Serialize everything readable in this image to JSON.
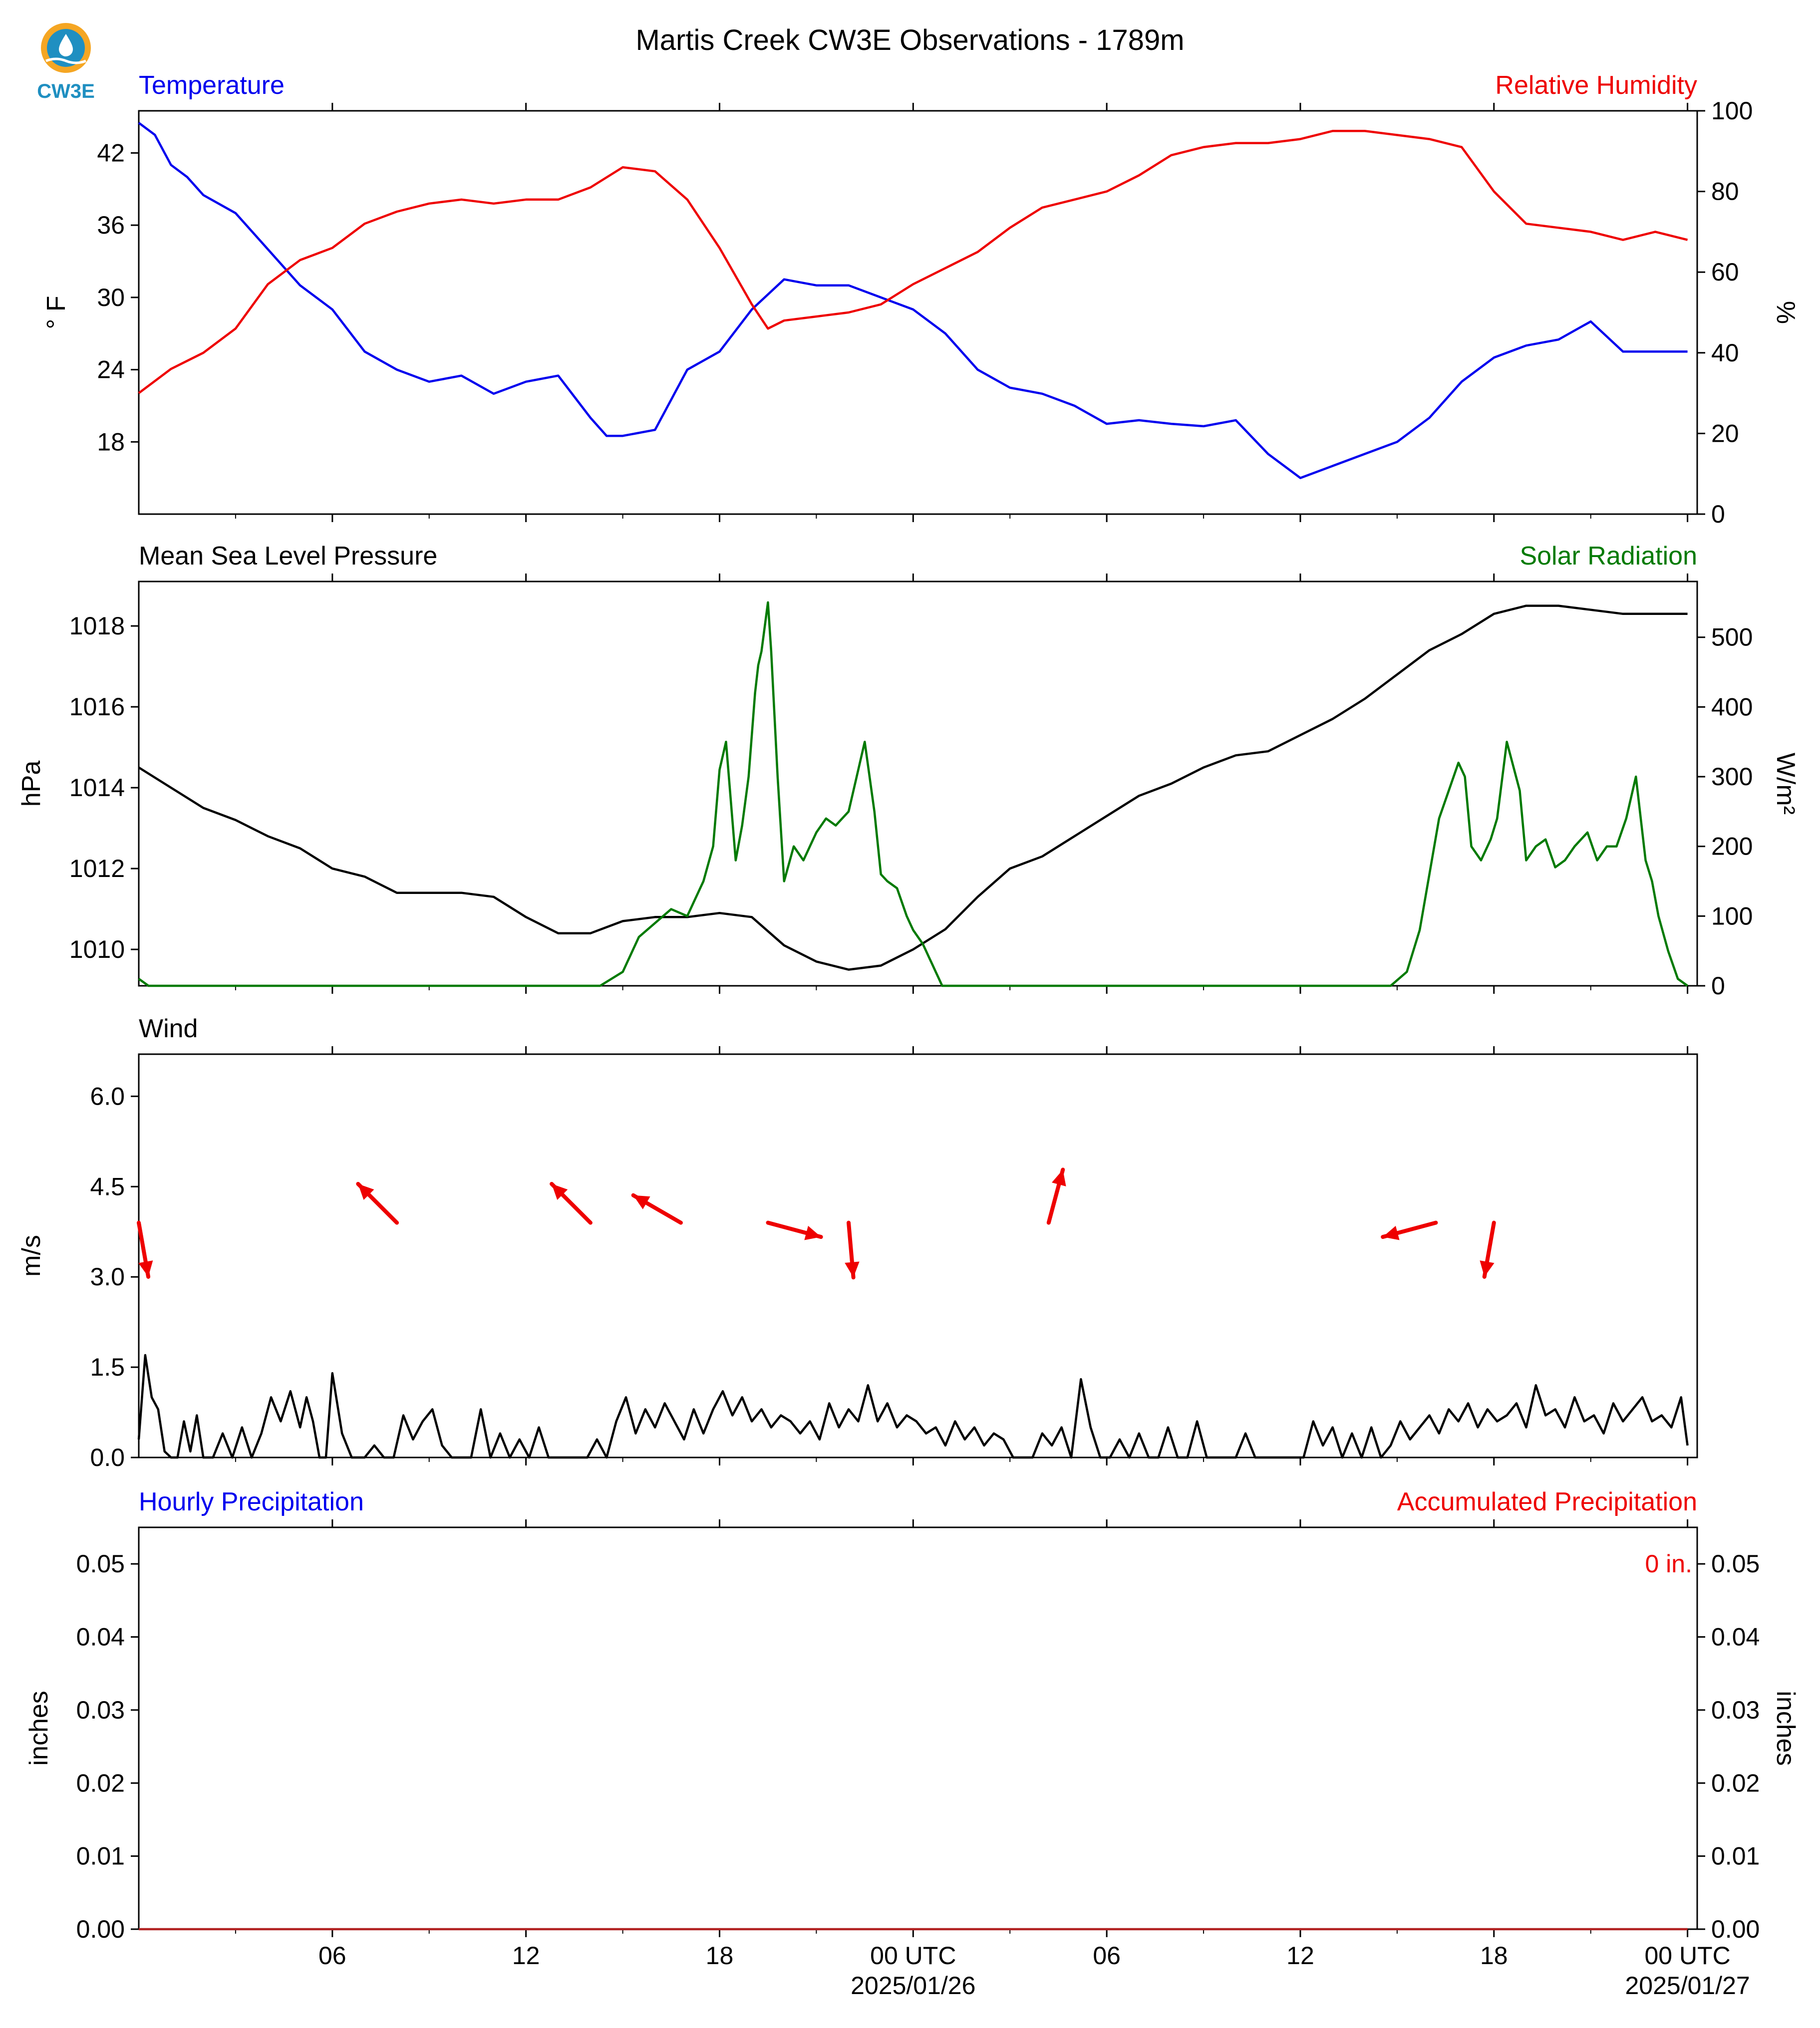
{
  "logo": {
    "text": "CW3E",
    "color": "#1f8fc1",
    "accent": "#f5a623"
  },
  "title": "Martis Creek CW3E Observations - 1789m",
  "colors": {
    "temperature": "#0000ee",
    "humidity": "#ee0000",
    "pressure": "#000000",
    "solar": "#007a00",
    "wind": "#000000",
    "arrows": "#ee0000",
    "accum": "#b22222"
  },
  "xaxis": {
    "ticks": [
      {
        "h": 6,
        "label": "06"
      },
      {
        "h": 12,
        "label": "12"
      },
      {
        "h": 18,
        "label": "18"
      },
      {
        "h": 24,
        "label": "00 UTC",
        "date": "2025/01/26"
      },
      {
        "h": 30,
        "label": "06"
      },
      {
        "h": 36,
        "label": "12"
      },
      {
        "h": 42,
        "label": "18"
      },
      {
        "h": 48,
        "label": "00 UTC",
        "date": "2025/01/27"
      }
    ]
  },
  "chart_data": [
    {
      "type": "line",
      "left_title": "Temperature",
      "right_title": "Relative Humidity",
      "ylabel_left": "° F",
      "ylabel_right": "%",
      "ylim_left": [
        12,
        45.5
      ],
      "ylim_right": [
        0,
        100
      ],
      "yticks_left": [
        18,
        24,
        30,
        36,
        42
      ],
      "yticks_right": [
        0,
        20,
        40,
        60,
        80,
        100
      ],
      "series": [
        {
          "axis": "left",
          "hours": [
            0,
            0.5,
            1,
            1.5,
            2,
            3,
            4,
            5,
            6,
            7,
            8,
            9,
            10,
            11,
            12,
            13,
            14,
            14.5,
            15,
            16,
            17,
            18,
            19,
            20,
            21,
            22,
            23,
            24,
            25,
            26,
            27,
            28,
            29,
            30,
            31,
            32,
            33,
            34,
            35,
            36,
            37,
            38,
            39,
            40,
            41,
            42,
            43,
            44,
            45,
            46,
            47,
            47.5,
            48
          ],
          "values": [
            44.5,
            43.5,
            41,
            40,
            38.5,
            37,
            34,
            31,
            29,
            25.5,
            24,
            23,
            23.5,
            22,
            23,
            23.5,
            20,
            18.5,
            18.5,
            19,
            24,
            25.5,
            29,
            31.5,
            31,
            31,
            30,
            29,
            27,
            24,
            22.5,
            22,
            21,
            19.5,
            19.8,
            19.5,
            19.3,
            19.8,
            17,
            15,
            16,
            17,
            18,
            20,
            23,
            25,
            26,
            26.5,
            28,
            25.5,
            25.5,
            25.5,
            25.5
          ]
        },
        {
          "axis": "right",
          "hours": [
            0,
            1,
            2,
            3,
            4,
            5,
            6,
            7,
            8,
            9,
            10,
            11,
            12,
            13,
            14,
            15,
            16,
            17,
            18,
            19,
            19.5,
            20,
            21,
            22,
            23,
            24,
            25,
            26,
            27,
            28,
            29,
            30,
            31,
            32,
            33,
            34,
            35,
            36,
            37,
            38,
            39,
            40,
            41,
            42,
            43,
            44,
            45,
            46,
            47,
            48
          ],
          "values": [
            30,
            36,
            40,
            46,
            57,
            63,
            66,
            72,
            75,
            77,
            78,
            77,
            78,
            78,
            81,
            86,
            85,
            78,
            66,
            52,
            46,
            48,
            49,
            50,
            52,
            57,
            61,
            65,
            71,
            76,
            78,
            80,
            84,
            89,
            91,
            92,
            92,
            93,
            95,
            95,
            94,
            93,
            91,
            80,
            72,
            71,
            70,
            68,
            70,
            68
          ]
        }
      ]
    },
    {
      "type": "line",
      "left_title": "Mean Sea Level Pressure",
      "right_title": "Solar Radiation",
      "ylabel_left": "hPa",
      "ylabel_right": "W/m²",
      "ylim_left": [
        1009.1,
        1019.1
      ],
      "ylim_right": [
        0,
        580
      ],
      "yticks_left": [
        1010,
        1012,
        1014,
        1016,
        1018
      ],
      "yticks_right": [
        0,
        100,
        200,
        300,
        400,
        500
      ],
      "series": [
        {
          "axis": "left",
          "hours": [
            0,
            1,
            2,
            3,
            4,
            5,
            6,
            7,
            8,
            9,
            10,
            11,
            12,
            13,
            14,
            15,
            16,
            17,
            18,
            19,
            20,
            21,
            22,
            23,
            24,
            25,
            26,
            27,
            28,
            29,
            30,
            31,
            32,
            33,
            34,
            35,
            36,
            37,
            38,
            39,
            40,
            41,
            42,
            43,
            44,
            45,
            46,
            47,
            48
          ],
          "values": [
            1014.5,
            1014,
            1013.5,
            1013.2,
            1012.8,
            1012.5,
            1012,
            1011.8,
            1011.4,
            1011.4,
            1011.4,
            1011.3,
            1010.8,
            1010.4,
            1010.4,
            1010.7,
            1010.8,
            1010.8,
            1010.9,
            1010.8,
            1010.1,
            1009.7,
            1009.5,
            1009.6,
            1010,
            1010.5,
            1011.3,
            1012,
            1012.3,
            1012.8,
            1013.3,
            1013.8,
            1014.1,
            1014.5,
            1014.8,
            1014.9,
            1015.3,
            1015.7,
            1016.2,
            1016.8,
            1017.4,
            1017.8,
            1018.3,
            1018.5,
            1018.5,
            1018.4,
            1018.3,
            1018.3,
            1018.3
          ]
        },
        {
          "axis": "right",
          "hours": [
            0,
            0.3,
            14.3,
            15,
            15.5,
            16,
            16.5,
            17,
            17.3,
            17.5,
            17.8,
            18,
            18.2,
            18.5,
            18.7,
            18.9,
            19.1,
            19.2,
            19.3,
            19.5,
            19.6,
            19.8,
            20,
            20.3,
            20.6,
            21,
            21.3,
            21.6,
            22,
            22.3,
            22.5,
            22.8,
            23,
            23.2,
            23.5,
            23.8,
            24,
            24.3,
            24.6,
            24.9,
            38.8,
            39.3,
            39.7,
            40,
            40.3,
            40.6,
            40.9,
            41.1,
            41.3,
            41.6,
            41.9,
            42.1,
            42.4,
            42.8,
            43,
            43.3,
            43.6,
            43.9,
            44.2,
            44.5,
            44.9,
            45.2,
            45.5,
            45.8,
            46.1,
            46.4,
            46.7,
            46.9,
            47.1,
            47.4,
            47.7,
            48
          ],
          "values": [
            10,
            0,
            0,
            20,
            70,
            90,
            110,
            100,
            130,
            150,
            200,
            310,
            350,
            180,
            230,
            300,
            420,
            460,
            480,
            550,
            480,
            300,
            150,
            200,
            180,
            220,
            240,
            230,
            250,
            310,
            350,
            250,
            160,
            150,
            140,
            100,
            80,
            60,
            30,
            0,
            0,
            20,
            80,
            160,
            240,
            280,
            320,
            300,
            200,
            180,
            210,
            240,
            350,
            280,
            180,
            200,
            210,
            170,
            180,
            200,
            220,
            180,
            200,
            200,
            240,
            300,
            180,
            150,
            100,
            50,
            10,
            0
          ]
        }
      ]
    },
    {
      "type": "line",
      "left_title": "Wind",
      "ylabel_left": "m/s",
      "ylim_left": [
        0,
        6.7
      ],
      "yticks_left": [
        0.0,
        1.5,
        3.0,
        4.5,
        6.0
      ],
      "tick_labels_left": [
        "0.0",
        "1.5",
        "3.0",
        "4.5",
        "6.0"
      ],
      "series": [
        {
          "axis": "left",
          "hours": [
            0,
            0.2,
            0.4,
            0.6,
            0.8,
            1,
            1.2,
            1.4,
            1.6,
            1.8,
            2,
            2.3,
            2.6,
            2.9,
            3.2,
            3.5,
            3.8,
            4.1,
            4.4,
            4.7,
            5,
            5.2,
            5.4,
            5.6,
            5.8,
            6,
            6.3,
            6.6,
            7,
            7.3,
            7.6,
            7.9,
            8.2,
            8.5,
            8.8,
            9.1,
            9.4,
            9.7,
            10,
            10.3,
            10.6,
            10.9,
            11.2,
            11.5,
            11.8,
            12.1,
            12.4,
            12.7,
            13,
            13.3,
            13.6,
            13.9,
            14.2,
            14.5,
            14.8,
            15.1,
            15.4,
            15.7,
            16,
            16.3,
            16.6,
            16.9,
            17.2,
            17.5,
            17.8,
            18.1,
            18.4,
            18.7,
            19,
            19.3,
            19.6,
            19.9,
            20.2,
            20.5,
            20.8,
            21.1,
            21.4,
            21.7,
            22,
            22.3,
            22.6,
            22.9,
            23.2,
            23.5,
            23.8,
            24.1,
            24.4,
            24.7,
            25,
            25.3,
            25.6,
            25.9,
            26.2,
            26.5,
            26.8,
            27.1,
            27.4,
            27.7,
            28,
            28.3,
            28.6,
            28.9,
            29.2,
            29.5,
            29.8,
            30.1,
            30.4,
            30.7,
            31,
            31.3,
            31.6,
            31.9,
            32.2,
            32.5,
            32.8,
            33.1,
            33.4,
            33.7,
            34,
            34.3,
            34.6,
            34.9,
            35.2,
            35.5,
            35.8,
            36.1,
            36.4,
            36.7,
            37,
            37.3,
            37.6,
            37.9,
            38.2,
            38.5,
            38.8,
            39.1,
            39.4,
            39.7,
            40,
            40.3,
            40.6,
            40.9,
            41.2,
            41.5,
            41.8,
            42.1,
            42.4,
            42.7,
            43,
            43.3,
            43.6,
            43.9,
            44.2,
            44.5,
            44.8,
            45.1,
            45.4,
            45.7,
            46,
            46.3,
            46.6,
            46.9,
            47.2,
            47.5,
            47.8,
            48
          ],
          "values": [
            0.3,
            1.7,
            1.0,
            0.8,
            0.1,
            0,
            0,
            0.6,
            0.1,
            0.7,
            0,
            0,
            0.4,
            0,
            0.5,
            0,
            0.4,
            1.0,
            0.6,
            1.1,
            0.5,
            1.0,
            0.6,
            0,
            0,
            1.4,
            0.4,
            0,
            0,
            0.2,
            0,
            0,
            0.7,
            0.3,
            0.6,
            0.8,
            0.2,
            0,
            0,
            0,
            0.8,
            0,
            0.4,
            0,
            0.3,
            0,
            0.5,
            0,
            0,
            0,
            0,
            0,
            0.3,
            0,
            0.6,
            1.0,
            0.4,
            0.8,
            0.5,
            0.9,
            0.6,
            0.3,
            0.8,
            0.4,
            0.8,
            1.1,
            0.7,
            1.0,
            0.6,
            0.8,
            0.5,
            0.7,
            0.6,
            0.4,
            0.6,
            0.3,
            0.9,
            0.5,
            0.8,
            0.6,
            1.2,
            0.6,
            0.9,
            0.5,
            0.7,
            0.6,
            0.4,
            0.5,
            0.2,
            0.6,
            0.3,
            0.5,
            0.2,
            0.4,
            0.3,
            0,
            0,
            0,
            0.4,
            0.2,
            0.5,
            0,
            1.3,
            0.5,
            0,
            0,
            0.3,
            0,
            0.4,
            0,
            0,
            0.5,
            0,
            0,
            0.6,
            0,
            0,
            0,
            0,
            0.4,
            0,
            0,
            0,
            0,
            0,
            0,
            0.6,
            0.2,
            0.5,
            0,
            0.4,
            0,
            0.5,
            0,
            0.2,
            0.6,
            0.3,
            0.5,
            0.7,
            0.4,
            0.8,
            0.6,
            0.9,
            0.5,
            0.8,
            0.6,
            0.7,
            0.9,
            0.5,
            1.2,
            0.7,
            0.8,
            0.5,
            1.0,
            0.6,
            0.7,
            0.4,
            0.9,
            0.6,
            0.8,
            1.0,
            0.6,
            0.7,
            0.5,
            1.0,
            0.2
          ]
        }
      ],
      "direction_arrows": [
        {
          "hour": 0,
          "from_deg": 350
        },
        {
          "hour": 8,
          "from_deg": 135
        },
        {
          "hour": 14,
          "from_deg": 135
        },
        {
          "hour": 16.8,
          "from_deg": 120
        },
        {
          "hour": 19.5,
          "from_deg": 285
        },
        {
          "hour": 22,
          "from_deg": 355
        },
        {
          "hour": 28.2,
          "from_deg": 195
        },
        {
          "hour": 40.2,
          "from_deg": 75
        },
        {
          "hour": 42,
          "from_deg": 10
        }
      ]
    },
    {
      "type": "line",
      "left_title": "Hourly Precipitation",
      "right_title": "Accumulated Precipitation",
      "ylabel_left": "inches",
      "ylabel_right": "inches",
      "ylim_left": [
        0,
        0.055
      ],
      "ylim_right": [
        0,
        0.055
      ],
      "yticks_left": [
        0.0,
        0.01,
        0.02,
        0.03,
        0.04,
        0.05
      ],
      "tick_labels_left": [
        "0.00",
        "0.01",
        "0.02",
        "0.03",
        "0.04",
        "0.05"
      ],
      "yticks_right": [
        0.0,
        0.01,
        0.02,
        0.03,
        0.04,
        0.05
      ],
      "tick_labels_right": [
        "0.00",
        "0.01",
        "0.02",
        "0.03",
        "0.04",
        "0.05"
      ],
      "annotation": "0 in.",
      "series": [
        {
          "axis": "left",
          "hours": [
            0,
            48
          ],
          "values": [
            0,
            0
          ]
        }
      ]
    }
  ]
}
